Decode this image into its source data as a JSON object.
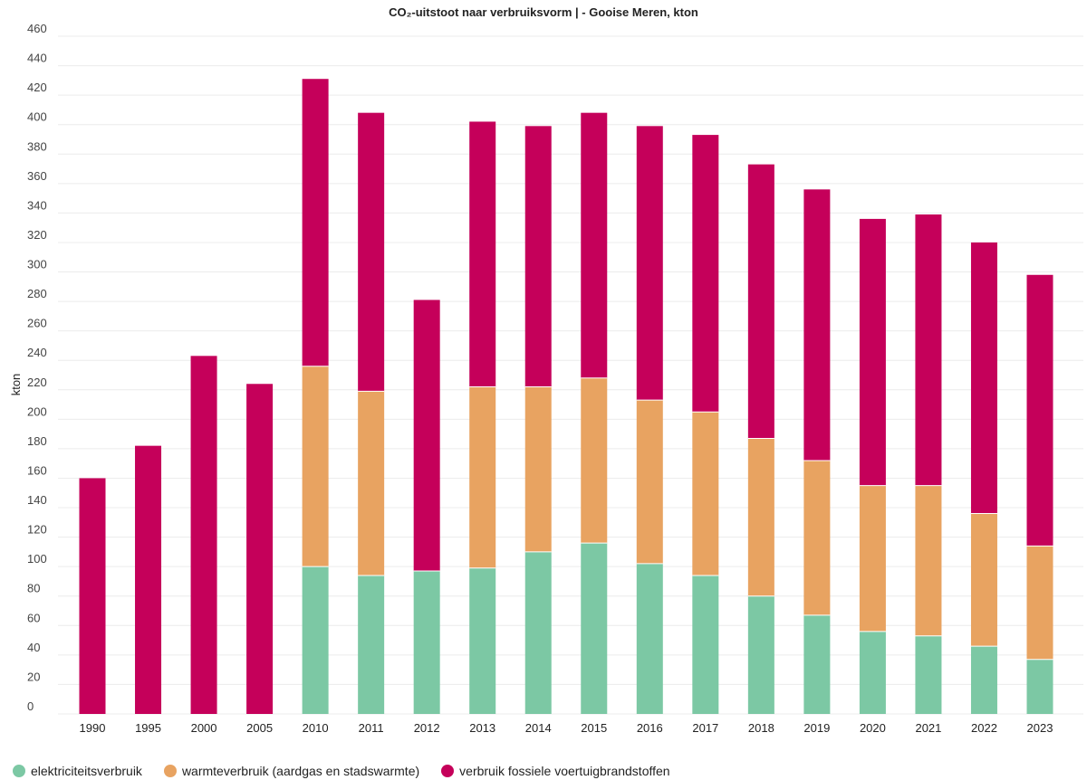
{
  "chart_data": {
    "type": "bar",
    "stacked": true,
    "title": "CO₂-uitstoot naar verbruiksvorm | - Gooise Meren, kton",
    "ylabel": "kton",
    "xlabel": "",
    "ylim": [
      0,
      460
    ],
    "yticks": [
      0,
      20,
      40,
      60,
      80,
      100,
      120,
      140,
      160,
      180,
      200,
      220,
      240,
      260,
      280,
      300,
      320,
      340,
      360,
      380,
      400,
      420,
      440,
      460
    ],
    "grid": true,
    "legend_position": "bottom-left",
    "categories": [
      "1990",
      "1995",
      "2000",
      "2005",
      "2010",
      "2011",
      "2012",
      "2013",
      "2014",
      "2015",
      "2016",
      "2017",
      "2018",
      "2019",
      "2020",
      "2021",
      "2022",
      "2023"
    ],
    "series": [
      {
        "name": "elektriciteitsverbruik",
        "color": "#7cc8a4",
        "values": [
          0,
          0,
          0,
          0,
          100,
          94,
          97,
          99,
          110,
          116,
          102,
          94,
          80,
          67,
          56,
          53,
          46,
          37
        ]
      },
      {
        "name": "warmteverbruik (aardgas en stadswarmte)",
        "color": "#e8a361",
        "values": [
          0,
          0,
          0,
          0,
          136,
          125,
          0,
          123,
          112,
          112,
          111,
          111,
          107,
          105,
          99,
          102,
          90,
          77
        ]
      },
      {
        "name": "verbruik fossiele voertuigbrandstoffen",
        "color": "#c5005a",
        "values": [
          160,
          182,
          243,
          224,
          195,
          189,
          184,
          180,
          177,
          180,
          186,
          188,
          186,
          184,
          181,
          184,
          184,
          184
        ]
      }
    ]
  }
}
